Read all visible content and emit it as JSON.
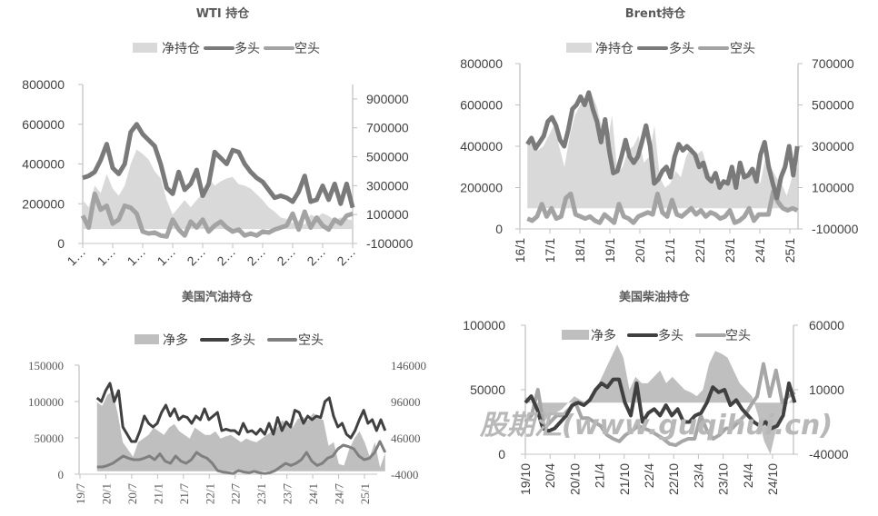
{
  "chart_data": [
    {
      "type": "area+line",
      "title": "WTI 持仓",
      "legend": [
        "净持仓",
        "多头",
        "空头"
      ],
      "left_ticks": [
        "0",
        "200000",
        "400000",
        "600000",
        "800000"
      ],
      "left_tick_values": [
        0,
        200000,
        400000,
        600000,
        800000
      ],
      "right_ticks": [
        "-100000",
        "100000",
        "300000",
        "500000",
        "700000",
        "900000"
      ],
      "right_tick_values": [
        -100000,
        100000,
        300000,
        500000,
        700000,
        900000
      ],
      "left_ylim": [
        0,
        800000
      ],
      "right_ylim": [
        -100000,
        1000000
      ],
      "x_tick_labels": [
        "1…",
        "1…",
        "1…",
        "1…",
        "2…",
        "2…",
        "2…",
        "2…",
        "2…",
        "2…"
      ],
      "x_range": [
        0,
        9
      ],
      "data_x_range": [
        0,
        9
      ],
      "colors": {
        "net": "#d9d9d9",
        "long": "#7a7a7a",
        "short": "#a3a3a3"
      },
      "series": [
        {
          "name": "净持仓",
          "axis": "right",
          "values": [
            200000,
            150000,
            300000,
            250000,
            380000,
            280000,
            230000,
            300000,
            450000,
            550000,
            520000,
            480000,
            400000,
            350000,
            200000,
            100000,
            150000,
            200000,
            150000,
            200000,
            250000,
            350000,
            300000,
            330000,
            350000,
            360000,
            310000,
            300000,
            280000,
            240000,
            200000,
            150000,
            120000,
            80000,
            70000,
            40000,
            60000,
            30000,
            100000,
            80000,
            110000,
            90000,
            60000,
            80000,
            70000,
            60000
          ]
        },
        {
          "name": "多头",
          "axis": "left",
          "values": [
            330000,
            340000,
            360000,
            420000,
            500000,
            380000,
            350000,
            400000,
            560000,
            600000,
            550000,
            520000,
            490000,
            400000,
            280000,
            250000,
            360000,
            270000,
            300000,
            370000,
            240000,
            300000,
            460000,
            430000,
            400000,
            470000,
            460000,
            400000,
            360000,
            330000,
            310000,
            270000,
            230000,
            240000,
            230000,
            210000,
            260000,
            340000,
            210000,
            220000,
            290000,
            220000,
            300000,
            200000,
            300000,
            180000
          ]
        },
        {
          "name": "空头",
          "axis": "left",
          "values": [
            140000,
            80000,
            250000,
            170000,
            190000,
            100000,
            120000,
            190000,
            180000,
            150000,
            60000,
            50000,
            55000,
            40000,
            35000,
            120000,
            70000,
            40000,
            110000,
            80000,
            120000,
            60000,
            90000,
            110000,
            80000,
            60000,
            70000,
            40000,
            50000,
            40000,
            60000,
            55000,
            70000,
            80000,
            90000,
            150000,
            70000,
            160000,
            80000,
            130000,
            90000,
            70000,
            120000,
            100000,
            140000,
            150000
          ]
        }
      ]
    },
    {
      "type": "area+line",
      "title": "Brent持仓",
      "legend": [
        "净持仓",
        "多头",
        "空头"
      ],
      "left_ticks": [
        "0",
        "200000",
        "400000",
        "600000",
        "800000"
      ],
      "left_tick_values": [
        0,
        200000,
        400000,
        600000,
        800000
      ],
      "right_ticks": [
        "-100000",
        "100000",
        "300000",
        "500000",
        "700000"
      ],
      "right_tick_values": [
        -100000,
        100000,
        300000,
        500000,
        700000
      ],
      "left_ylim": [
        0,
        800000
      ],
      "right_ylim": [
        -100000,
        700000
      ],
      "x_tick_labels": [
        "16/1",
        "17/1",
        "18/1",
        "19/1",
        "20/1",
        "21/1",
        "22/1",
        "23/1",
        "24/1",
        "25/1"
      ],
      "x_range": [
        16,
        25
      ],
      "data_x_range": [
        16.25,
        25.25
      ],
      "colors": {
        "net": "#d9d9d9",
        "long": "#7a7a7a",
        "short": "#a3a3a3"
      },
      "series": [
        {
          "name": "净持仓",
          "axis": "right",
          "values": [
            330000,
            300000,
            280000,
            300000,
            350000,
            400000,
            300000,
            200000,
            350000,
            450000,
            500000,
            540000,
            560000,
            500000,
            400000,
            300000,
            450000,
            170000,
            200000,
            280000,
            300000,
            350000,
            220000,
            250000,
            400000,
            150000,
            100000,
            120000,
            180000,
            150000,
            250000,
            300000,
            260000,
            280000,
            200000,
            130000,
            120000,
            100000,
            150000,
            200000,
            120000,
            180000,
            150000,
            200000,
            120000,
            250000,
            200000,
            150000,
            120000,
            60000,
            150000,
            200000
          ]
        },
        {
          "name": "多头",
          "axis": "left",
          "values": [
            410000,
            440000,
            390000,
            420000,
            450000,
            520000,
            540000,
            500000,
            430000,
            400000,
            480000,
            580000,
            600000,
            640000,
            600000,
            660000,
            580000,
            520000,
            420000,
            530000,
            380000,
            270000,
            280000,
            350000,
            430000,
            350000,
            320000,
            350000,
            420000,
            500000,
            400000,
            220000,
            240000,
            280000,
            300000,
            250000,
            350000,
            410000,
            380000,
            400000,
            380000,
            360000,
            300000,
            320000,
            250000,
            230000,
            270000,
            200000,
            230000,
            220000,
            300000,
            200000,
            320000,
            250000,
            260000,
            290000,
            230000,
            360000,
            420000,
            300000,
            220000,
            150000,
            250000,
            300000,
            400000,
            260000,
            400000
          ]
        },
        {
          "name": "空头",
          "axis": "left",
          "values": [
            50000,
            40000,
            60000,
            120000,
            60000,
            100000,
            50000,
            60000,
            150000,
            170000,
            70000,
            60000,
            50000,
            60000,
            40000,
            30000,
            70000,
            50000,
            30000,
            120000,
            60000,
            50000,
            30000,
            60000,
            70000,
            80000,
            70000,
            170000,
            80000,
            60000,
            140000,
            70000,
            60000,
            80000,
            100000,
            70000,
            90000,
            60000,
            80000,
            70000,
            50000,
            60000,
            90000,
            30000,
            40000,
            60000,
            100000,
            40000,
            70000,
            70000,
            70000,
            180000,
            130000,
            100000,
            90000,
            100000,
            90000
          ]
        }
      ]
    },
    {
      "type": "area+line",
      "title": "美国汽油持仓",
      "legend": [
        "净多",
        "多头",
        "空头"
      ],
      "left_ticks": [
        "0",
        "50000",
        "100000",
        "150000"
      ],
      "left_tick_values": [
        0,
        50000,
        100000,
        150000
      ],
      "right_ticks": [
        "-4000",
        "46000",
        "96000",
        "146000"
      ],
      "right_tick_values": [
        -4000,
        46000,
        96000,
        146000
      ],
      "left_ylim": [
        0,
        150000
      ],
      "right_ylim": [
        -4000,
        146000
      ],
      "x_tick_labels": [
        "19/7",
        "20/1",
        "20/7",
        "21/1",
        "21/7",
        "22/1",
        "22/7",
        "23/1",
        "23/7",
        "24/1",
        "24/7",
        "25/1"
      ],
      "x_range": [
        19.5,
        25.0
      ],
      "data_x_range": [
        19.83,
        25.4
      ],
      "colors": {
        "net": "#bfbfbf",
        "long": "#404040",
        "short": "#7f7f7f"
      },
      "series": [
        {
          "name": "净多",
          "axis": "right",
          "values": [
            95000,
            90000,
            105000,
            110000,
            80000,
            40000,
            30000,
            20000,
            40000,
            45000,
            50000,
            60000,
            55000,
            50000,
            60000,
            65000,
            55000,
            50000,
            45000,
            60000,
            55000,
            50000,
            50000,
            55000,
            45000,
            48000,
            50000,
            45000,
            40000,
            45000,
            42000,
            40000,
            45000,
            50000,
            55000,
            60000,
            70000,
            65000,
            60000,
            72000,
            75000,
            70000,
            80000,
            75000,
            70000,
            35000,
            40000,
            10000,
            8000,
            30000,
            45000,
            55000,
            40000,
            20000,
            40000,
            5000,
            25000
          ]
        },
        {
          "name": "多头",
          "axis": "left",
          "values": [
            105000,
            100000,
            115000,
            125000,
            100000,
            115000,
            65000,
            55000,
            45000,
            45000,
            60000,
            80000,
            70000,
            65000,
            70000,
            85000,
            95000,
            80000,
            90000,
            75000,
            80000,
            78000,
            70000,
            80000,
            75000,
            90000,
            75000,
            80000,
            85000,
            60000,
            62000,
            60000,
            60000,
            55000,
            70000,
            58000,
            60000,
            55000,
            62000,
            55000,
            70000,
            55000,
            78000,
            60000,
            72000,
            65000,
            88000,
            85000,
            70000,
            80000,
            75000,
            80000,
            78000,
            100000,
            105000,
            80000,
            65000,
            70000,
            55000,
            50000,
            60000,
            75000,
            88000,
            70000,
            75000,
            60000,
            75000,
            60000
          ]
        },
        {
          "name": "空头",
          "axis": "left",
          "values": [
            10000,
            10000,
            12000,
            15000,
            20000,
            25000,
            22000,
            20000,
            20000,
            22000,
            25000,
            20000,
            28000,
            18000,
            15000,
            25000,
            18000,
            15000,
            20000,
            30000,
            25000,
            22000,
            15000,
            5000,
            3000,
            2000,
            1000,
            5000,
            3000,
            2000,
            4000,
            2000,
            1000,
            2000,
            5000,
            10000,
            15000,
            12000,
            15000,
            20000,
            30000,
            18000,
            12000,
            15000,
            22000,
            25000,
            35000,
            40000,
            38000,
            35000,
            25000,
            20000,
            22000,
            30000,
            45000,
            30000
          ]
        }
      ]
    },
    {
      "type": "area+line",
      "title": "美国柴油持仓",
      "legend": [
        "净多",
        "多头",
        "空头"
      ],
      "left_ticks": [
        "0",
        "50000",
        "100000"
      ],
      "left_tick_values": [
        0,
        50000,
        100000
      ],
      "right_ticks": [
        "-40000",
        "10000",
        "60000"
      ],
      "right_tick_values": [
        -40000,
        10000,
        60000
      ],
      "left_ylim": [
        0,
        100000
      ],
      "right_ylim": [
        -40000,
        60000
      ],
      "x_tick_labels": [
        "19/10",
        "20/4",
        "20/10",
        "21/4",
        "21/10",
        "22/4",
        "22/10",
        "23/4",
        "23/10",
        "24/4",
        "24/10"
      ],
      "x_range": [
        19.75,
        24.75
      ],
      "data_x_range": [
        19.75,
        25.2
      ],
      "colors": {
        "net": "#bfbfbf",
        "long": "#404040",
        "short": "#a6a6a6"
      },
      "series": [
        {
          "name": "净多",
          "axis": "right",
          "values": [
            5000,
            0,
            -5000,
            -15000,
            -10000,
            -8000,
            -5000,
            0,
            5000,
            2000,
            0,
            5000,
            15000,
            25000,
            35000,
            45000,
            35000,
            10000,
            20000,
            15000,
            15000,
            20000,
            25000,
            15000,
            20000,
            15000,
            10000,
            8000,
            5000,
            10000,
            30000,
            40000,
            38000,
            35000,
            25000,
            15000,
            10000,
            5000,
            -10000,
            -30000,
            -40000,
            -20000,
            -5000,
            0,
            5000
          ]
        },
        {
          "name": "多头",
          "axis": "left",
          "values": [
            40000,
            45000,
            35000,
            20000,
            18000,
            20000,
            25000,
            30000,
            38000,
            40000,
            38000,
            42000,
            50000,
            55000,
            52000,
            58000,
            58000,
            40000,
            30000,
            55000,
            25000,
            32000,
            35000,
            30000,
            38000,
            30000,
            35000,
            25000,
            25000,
            30000,
            32000,
            40000,
            52000,
            48000,
            50000,
            38000,
            42000,
            35000,
            30000,
            25000,
            22000,
            25000,
            20000,
            22000,
            30000,
            55000,
            40000
          ]
        },
        {
          "name": "空头",
          "axis": "left",
          "values": [
            25000,
            30000,
            50000,
            20000,
            25000,
            30000,
            30000,
            35000,
            40000,
            28000,
            28000,
            25000,
            22000,
            15000,
            12000,
            10000,
            15000,
            18000,
            22000,
            20000,
            18000,
            15000,
            12000,
            8000,
            7000,
            10000,
            12000,
            12000,
            30000,
            18000,
            12000,
            15000,
            20000,
            20000,
            25000,
            30000,
            38000,
            45000,
            70000,
            45000,
            65000,
            40000,
            45000,
            48000
          ]
        }
      ]
    }
  ],
  "watermark": "股期汇(www.guqihui.cn)"
}
